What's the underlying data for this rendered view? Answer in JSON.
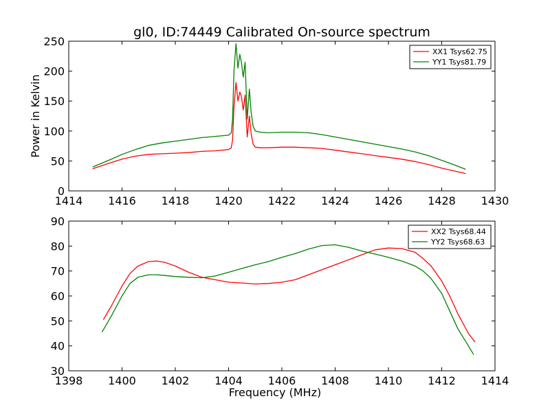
{
  "title": "gl0, ID:74449 Calibrated On-source spectrum",
  "colors": {
    "red": "#ff0000",
    "green": "#008000"
  },
  "chart_data": [
    {
      "type": "line",
      "xlim": [
        1414,
        1430
      ],
      "ylim": [
        0,
        250
      ],
      "xticks": [
        1414,
        1416,
        1418,
        1420,
        1422,
        1424,
        1426,
        1428,
        1430
      ],
      "yticks": [
        0,
        50,
        100,
        150,
        200,
        250
      ],
      "xlabel": "",
      "ylabel": "Power in Kelvin",
      "legend": "top-right",
      "series": [
        {
          "name": "XX1 Tsys62.75",
          "color": "#ff0000",
          "x": [
            1414.9,
            1415.5,
            1416.0,
            1416.5,
            1417.0,
            1417.5,
            1418.0,
            1418.5,
            1419.0,
            1419.5,
            1420.0,
            1420.1,
            1420.15,
            1420.2,
            1420.28,
            1420.35,
            1420.42,
            1420.48,
            1420.55,
            1420.62,
            1420.7,
            1420.78,
            1420.85,
            1420.92,
            1421.0,
            1421.2,
            1421.5,
            1422.0,
            1422.5,
            1423.0,
            1423.5,
            1424.0,
            1424.5,
            1425.0,
            1425.5,
            1426.0,
            1426.5,
            1427.0,
            1427.5,
            1428.0,
            1428.5,
            1428.9
          ],
          "values": [
            37,
            46,
            53,
            58,
            61,
            62,
            63,
            64,
            66,
            67,
            69,
            72,
            85,
            140,
            181,
            150,
            165,
            158,
            135,
            160,
            90,
            125,
            95,
            78,
            73,
            72,
            72,
            73,
            73,
            72,
            71,
            68,
            65,
            62,
            59,
            56,
            53,
            49,
            44,
            38,
            33,
            29
          ]
        },
        {
          "name": "YY1 Tsys81.79",
          "color": "#008000",
          "x": [
            1414.9,
            1415.5,
            1416.0,
            1416.5,
            1417.0,
            1417.5,
            1418.0,
            1418.5,
            1419.0,
            1419.5,
            1420.0,
            1420.1,
            1420.15,
            1420.2,
            1420.28,
            1420.35,
            1420.42,
            1420.48,
            1420.55,
            1420.62,
            1420.7,
            1420.78,
            1420.85,
            1420.92,
            1421.0,
            1421.2,
            1421.5,
            1422.0,
            1422.5,
            1423.0,
            1423.5,
            1424.0,
            1424.5,
            1425.0,
            1425.5,
            1426.0,
            1426.5,
            1427.0,
            1427.5,
            1428.0,
            1428.5,
            1428.9
          ],
          "values": [
            40,
            51,
            61,
            69,
            76,
            80,
            83,
            86,
            89,
            91,
            93,
            97,
            120,
            200,
            246,
            205,
            228,
            215,
            190,
            215,
            120,
            170,
            130,
            108,
            100,
            98,
            97,
            98,
            98,
            97,
            94,
            90,
            86,
            82,
            78,
            74,
            70,
            65,
            59,
            51,
            43,
            36
          ]
        }
      ]
    },
    {
      "type": "line",
      "xlim": [
        1398,
        1414
      ],
      "ylim": [
        30,
        90
      ],
      "xticks": [
        1398,
        1400,
        1402,
        1404,
        1406,
        1408,
        1410,
        1412,
        1414
      ],
      "yticks": [
        30,
        40,
        50,
        60,
        70,
        80,
        90
      ],
      "xlabel": "Frequency (MHz)",
      "ylabel": "",
      "legend": "top-right",
      "series": [
        {
          "name": "XX2 Tsys68.44",
          "color": "#ff0000",
          "x": [
            1399.3,
            1399.6,
            1400.0,
            1400.3,
            1400.6,
            1401.0,
            1401.3,
            1401.6,
            1402.0,
            1402.5,
            1403.0,
            1403.5,
            1404.0,
            1404.5,
            1405.0,
            1405.5,
            1406.0,
            1406.5,
            1407.0,
            1407.5,
            1408.0,
            1408.5,
            1409.0,
            1409.5,
            1410.0,
            1410.5,
            1411.0,
            1411.3,
            1411.6,
            1412.0,
            1412.3,
            1412.6,
            1413.0,
            1413.25
          ],
          "values": [
            50.5,
            56,
            64,
            69,
            72,
            73.8,
            74,
            73.5,
            72,
            69.5,
            67.5,
            66.5,
            65.5,
            65.2,
            64.8,
            65,
            65.5,
            66.5,
            68.5,
            70.5,
            72.5,
            74.5,
            76.5,
            78.5,
            79.2,
            79,
            77.5,
            75,
            72,
            66,
            60,
            53,
            45,
            41.5
          ]
        },
        {
          "name": "YY2 Tsys68.63",
          "color": "#008000",
          "x": [
            1399.25,
            1399.6,
            1400.0,
            1400.3,
            1400.6,
            1401.0,
            1401.3,
            1401.6,
            1402.0,
            1402.5,
            1403.0,
            1403.5,
            1404.0,
            1404.5,
            1405.0,
            1405.5,
            1406.0,
            1406.5,
            1407.0,
            1407.5,
            1408.0,
            1408.5,
            1409.0,
            1409.5,
            1410.0,
            1410.5,
            1411.0,
            1411.3,
            1411.6,
            1412.0,
            1412.3,
            1412.6,
            1413.0,
            1413.2
          ],
          "values": [
            45.5,
            52,
            60,
            65,
            67.5,
            68.5,
            68.5,
            68.2,
            67.8,
            67.5,
            67.3,
            68,
            69.5,
            71,
            72.5,
            73.8,
            75.5,
            77,
            78.8,
            80.2,
            80.5,
            79.5,
            78,
            76.8,
            75.5,
            74,
            72,
            70,
            67,
            61,
            54,
            47,
            40,
            36.5
          ]
        }
      ]
    }
  ]
}
